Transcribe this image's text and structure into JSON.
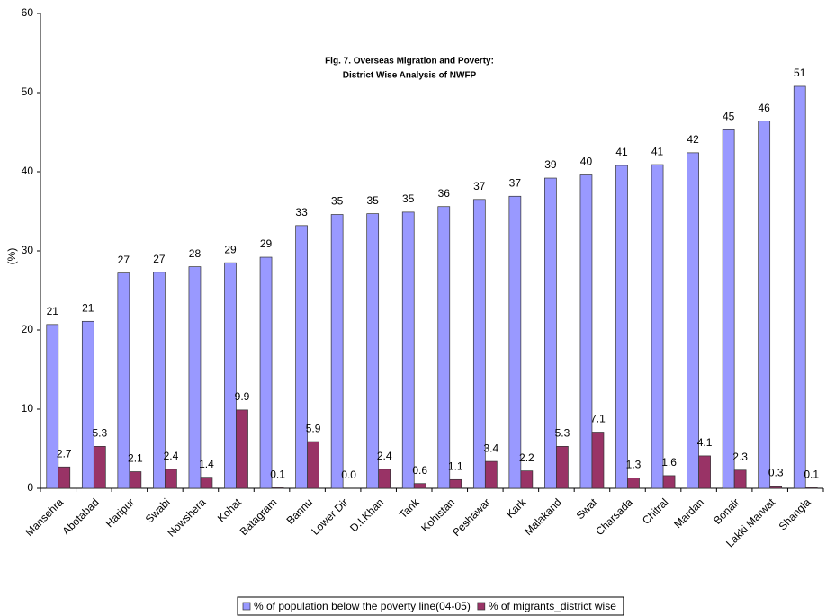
{
  "chart_data": {
    "type": "bar",
    "title": [
      "Fig. 7. Overseas Migration and Poverty:",
      "District Wise Analysis of NWFP"
    ],
    "y_label": "(%)",
    "categories": [
      "Mansehra",
      "Abotabad",
      "Haripur",
      "Swabi",
      "Nowshera",
      "Kohat",
      "Batagram",
      "Bannu",
      "Lower Dir",
      "D.I.Khan",
      "Tank",
      "Kohistan",
      "Peshawar",
      "Kark",
      "Malakand",
      "Swat",
      "Charsada",
      "Chitral",
      "Mardan",
      "Bonair",
      "Lakki Marwat",
      "Shangla"
    ],
    "series": [
      {
        "name": "% of population below the poverty line(04-05)",
        "color": "#9999ff",
        "values": [
          20.7,
          21.1,
          27.2,
          27.3,
          28.0,
          28.5,
          29.2,
          33.2,
          34.6,
          34.7,
          34.9,
          35.6,
          36.5,
          36.9,
          39.2,
          39.6,
          40.8,
          40.9,
          42.4,
          45.3,
          46.4,
          50.8
        ],
        "value_labels": [
          "21",
          "21",
          "27",
          "27",
          "28",
          "29",
          "29",
          "33",
          "35",
          "35",
          "35",
          "36",
          "37",
          "37",
          "39",
          "40",
          "41",
          "41",
          "42",
          "45",
          "46",
          "51"
        ]
      },
      {
        "name": "% of migrants_district wise",
        "color": "#993366",
        "values": [
          2.7,
          5.3,
          2.1,
          2.4,
          1.4,
          9.9,
          0.1,
          5.9,
          0,
          2.4,
          0.6,
          1.1,
          3.4,
          2.2,
          5.3,
          7.1,
          1.3,
          1.6,
          4.1,
          2.3,
          0.3,
          0.1
        ],
        "value_labels": [
          "2.7",
          "5.3",
          "2.1",
          "2.4",
          "1.4",
          "9.9",
          "0.1",
          "5.9",
          "0.0",
          "2.4",
          "0.6",
          "1.1",
          "3.4",
          "2.2",
          "5.3",
          "7.1",
          "1.3",
          "1.6",
          "4.1",
          "2.3",
          "0.3",
          "0.1"
        ]
      }
    ],
    "ylim": [
      0,
      60
    ],
    "yticks": [
      0,
      10,
      20,
      30,
      40,
      50,
      60
    ],
    "grid": false,
    "legend": "bottom"
  }
}
